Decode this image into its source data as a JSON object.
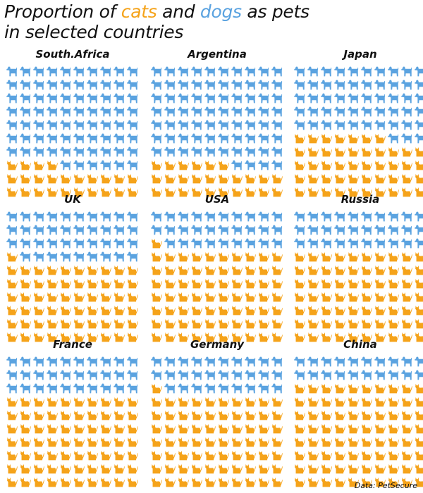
{
  "title": {
    "prefix": "Proportion of ",
    "cats_word": "cats",
    "middle": " and ",
    "dogs_word": "dogs",
    "suffix": " as pets",
    "line2": "in selected countries"
  },
  "source": "Data: PetSecure",
  "colors": {
    "cat": "#f5a31a",
    "dog": "#5ba3e0"
  },
  "icons": {
    "cat": "cat-icon",
    "dog": "dog-icon"
  },
  "chart_data": {
    "type": "waffle",
    "units_per_panel": 100,
    "grid": {
      "rows": 10,
      "cols": 10
    },
    "series": [
      {
        "name": "cats",
        "color": "#f5a31a"
      },
      {
        "name": "dogs",
        "color": "#5ba3e0"
      }
    ],
    "panels": [
      {
        "country": "South.Africa",
        "cats": 24,
        "dogs": 76
      },
      {
        "country": "Argentina",
        "cats": 26,
        "dogs": 74
      },
      {
        "country": "Japan",
        "cats": 47,
        "dogs": 53
      },
      {
        "country": "UK",
        "cats": 61,
        "dogs": 39
      },
      {
        "country": "USA",
        "cats": 71,
        "dogs": 29
      },
      {
        "country": "Russia",
        "cats": 70,
        "dogs": 30
      },
      {
        "country": "France",
        "cats": 70,
        "dogs": 30
      },
      {
        "country": "Germany",
        "cats": 71,
        "dogs": 29
      },
      {
        "country": "China",
        "cats": 80,
        "dogs": 20
      }
    ]
  }
}
